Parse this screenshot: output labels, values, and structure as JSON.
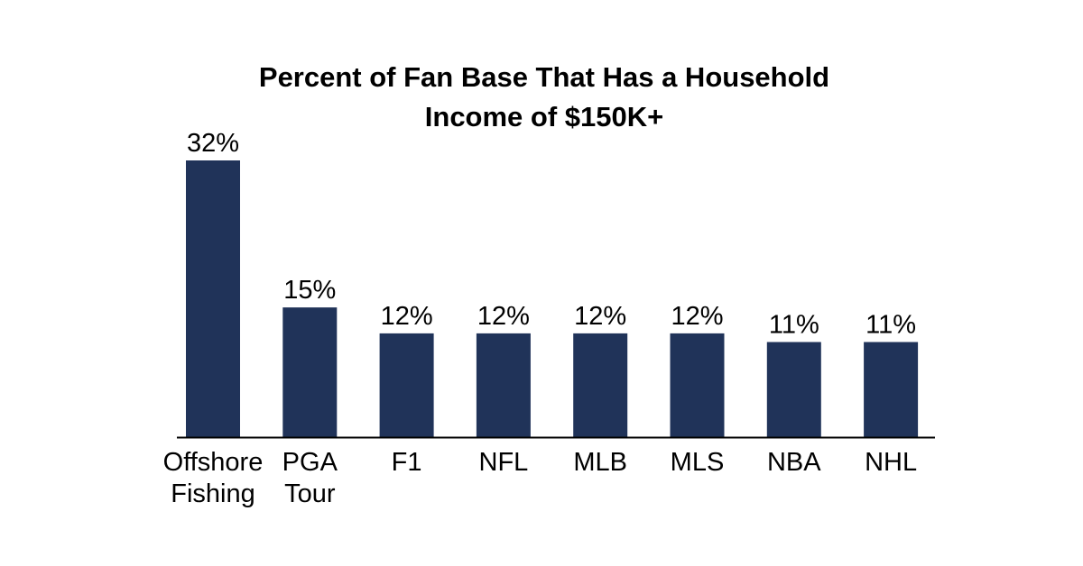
{
  "chart_data": {
    "type": "bar",
    "title_lines": [
      "Percent of Fan Base That Has a Household",
      "Income of $150K+"
    ],
    "categories": [
      [
        "Offshore",
        "Fishing"
      ],
      [
        "PGA",
        "Tour"
      ],
      [
        "F1"
      ],
      [
        "NFL"
      ],
      [
        "MLB"
      ],
      [
        "MLS"
      ],
      [
        "NBA"
      ],
      [
        "NHL"
      ]
    ],
    "values": [
      32,
      15,
      12,
      12,
      12,
      12,
      11,
      11
    ],
    "data_labels": [
      "32%",
      "15%",
      "12%",
      "12%",
      "12%",
      "12%",
      "11%",
      "11%"
    ],
    "ylim": [
      0,
      32
    ],
    "grid": false,
    "legend": "none",
    "bar_color": "#203359",
    "axis_color": "#000000"
  }
}
